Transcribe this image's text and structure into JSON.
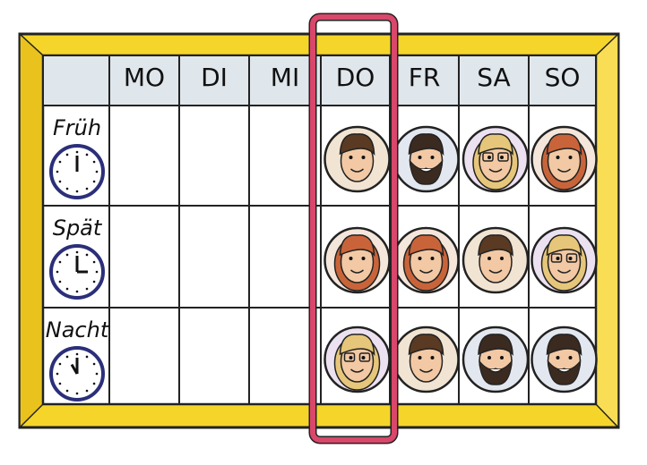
{
  "header": {
    "days": [
      "MO",
      "DI",
      "MI",
      "DO",
      "FR",
      "SA",
      "SO"
    ]
  },
  "shifts": [
    "Früh",
    "Spät",
    "Nacht"
  ]
}
